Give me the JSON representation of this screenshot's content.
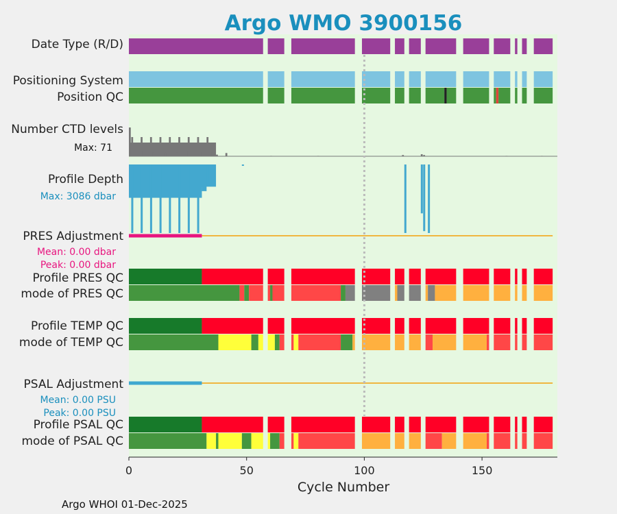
{
  "title": "Argo WMO 3900156",
  "footer": "Argo WHOI 01-Dec-2025",
  "chart_data": {
    "type": "qc-timeline",
    "xlabel": "Cycle Number",
    "xlim": [
      0,
      182
    ],
    "xticks": [
      0,
      50,
      100,
      150
    ],
    "ref_line_cycle": 100,
    "missing_cycles": [
      57,
      58,
      66,
      67,
      68,
      96,
      97,
      98,
      111,
      112,
      117,
      118,
      124,
      125,
      139,
      140,
      141,
      153,
      154,
      162,
      163,
      165,
      166,
      169,
      170,
      171,
      180,
      181
    ],
    "rows": {
      "date_type": {
        "label": "Date Type (R/D)",
        "color": "#993f99"
      },
      "positioning": {
        "label": "Positioning System",
        "color": "#7ec4e0"
      },
      "position_qc": {
        "label": "Position QC",
        "color": "#45963f",
        "exceptions": [
          {
            "cycle": 134,
            "color": "#222222"
          },
          {
            "cycle": 156,
            "color": "#e0453a"
          }
        ]
      },
      "ctd_levels": {
        "label": "Number CTD levels",
        "max_label": "Max: 71",
        "max": 71,
        "color": "#777777"
      },
      "profile_depth": {
        "label": "Profile Depth",
        "max_label": "Max: 3086 dbar",
        "max": 3086,
        "color": "#43a8cf"
      },
      "pres_adj": {
        "label": "PRES Adjustment",
        "mean_label": "Mean: 0.00 dbar",
        "peak_label": "Peak: 0.00 dbar",
        "adjusted_color": "#e8157f",
        "line_color": "#f0b640",
        "adjusted_until": 31
      },
      "profile_pres_qc": {
        "label": "Profile PRES QC"
      },
      "mode_pres_qc": {
        "label": "mode of PRES QC"
      },
      "profile_temp_qc": {
        "label": "Profile TEMP QC"
      },
      "mode_temp_qc": {
        "label": "mode of TEMP QC"
      },
      "psal_adj": {
        "label": "PSAL Adjustment",
        "mean_label": "Mean: 0.00 PSU",
        "peak_label": "Peak: 0.00 PSU",
        "adjusted_color": "#3ea8cf",
        "line_color": "#f0b640",
        "adjusted_until": 31
      },
      "profile_psal_qc": {
        "label": "Profile PSAL QC"
      },
      "mode_psal_qc": {
        "label": "mode of PSAL QC"
      }
    },
    "qc_colors": {
      "profile_A": "#177a2a",
      "profile_F": "#ff0026",
      "good": "#45963f",
      "probably_good": "#ffff3a",
      "correctable": "#ffb03f",
      "bad": "#ff4747",
      "missing": "#808080"
    },
    "ctd_levels_by_cycle": [
      [
        0,
        71
      ],
      [
        5,
        14
      ],
      [
        10,
        10
      ],
      [
        15,
        10
      ],
      [
        20,
        10
      ],
      [
        25,
        11
      ],
      [
        30,
        11
      ],
      [
        35,
        10
      ],
      [
        37,
        4
      ],
      [
        41,
        8
      ],
      [
        60,
        1
      ],
      [
        80,
        1
      ],
      [
        100,
        1
      ],
      [
        116,
        3
      ],
      [
        124,
        5
      ],
      [
        125,
        3
      ],
      [
        160,
        1
      ],
      [
        175,
        1
      ]
    ],
    "profile_depth_segments": [
      {
        "from": 0,
        "to": 37,
        "depth": 1000
      },
      {
        "from": 0,
        "to": 31,
        "depth": 1500
      },
      {
        "from": 31,
        "to": 33,
        "depth": 1200
      },
      {
        "from": 33,
        "to": 34,
        "depth": 800
      }
    ],
    "profile_depth_spikes": [
      {
        "cycle": 1,
        "depth": 3086
      },
      {
        "cycle": 5,
        "depth": 3086
      },
      {
        "cycle": 9,
        "depth": 3086
      },
      {
        "cycle": 13,
        "depth": 3086
      },
      {
        "cycle": 17,
        "depth": 3086
      },
      {
        "cycle": 21,
        "depth": 3086
      },
      {
        "cycle": 25,
        "depth": 3086
      },
      {
        "cycle": 29,
        "depth": 3086
      },
      {
        "cycle": 117,
        "depth": 3086
      },
      {
        "cycle": 124,
        "depth": 2200
      },
      {
        "cycle": 125,
        "depth": 3000
      },
      {
        "cycle": 127,
        "depth": 3086
      }
    ]
  }
}
